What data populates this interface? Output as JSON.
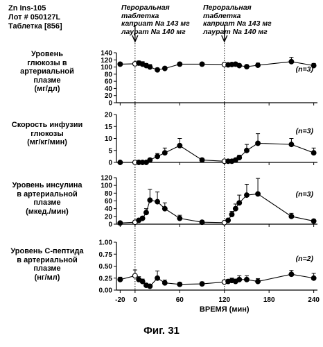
{
  "header": {
    "line1": "Zn Ins-105",
    "line2": "Лот # 050127L",
    "line3": "Таблетка [856]"
  },
  "dose_annotations": [
    {
      "lines": [
        "Пероральная",
        "таблетка",
        "каприат Na 143 мг",
        "лаурат Na 140 мг"
      ]
    },
    {
      "lines": [
        "Пероральная",
        "таблетка",
        "каприат Na 143 мг",
        "лаурат Na 140 мг"
      ]
    }
  ],
  "x_axis": {
    "label": "ВРЕМЯ (мин)",
    "ticks": [
      -20,
      0,
      60,
      120,
      180,
      240
    ],
    "tick_labels": [
      "-20",
      "0",
      "60",
      "120",
      "180",
      "240"
    ],
    "range": [
      -25,
      245
    ]
  },
  "dose_times": [
    0,
    120
  ],
  "figure_caption": "Фиг. 31",
  "chart_data": [
    {
      "type": "line",
      "caption_lines": [
        "Уровень",
        "глюкозы в",
        "артериальной",
        "плазме",
        "(мг/дл)"
      ],
      "n_label": "(n=3)",
      "ylim": [
        0,
        140
      ],
      "yticks": [
        0,
        20,
        40,
        60,
        80,
        100,
        120,
        140
      ],
      "ytick_labels": [
        "0",
        "20",
        "40",
        "60",
        "80",
        "100",
        "120",
        "140"
      ],
      "series": [
        {
          "x": [
            -20,
            0,
            5,
            10,
            15,
            20,
            30,
            40,
            60,
            90,
            120,
            125,
            130,
            135,
            140,
            150,
            165,
            210,
            240
          ],
          "y": [
            108,
            109,
            111,
            108,
            104,
            100,
            92,
            96,
            108,
            108,
            107,
            106,
            107,
            108,
            104,
            101,
            105,
            115,
            104
          ],
          "err": [
            5,
            4,
            6,
            7,
            6,
            7,
            5,
            5,
            5,
            4,
            4,
            4,
            4,
            5,
            5,
            5,
            6,
            12,
            6
          ]
        }
      ]
    },
    {
      "type": "line",
      "caption_lines": [
        "Скорость инфузии",
        "глюкозы",
        "(мг/кг/мин)"
      ],
      "n_label": "(n=3)",
      "ylim": [
        0,
        20
      ],
      "yticks": [
        0,
        5,
        10,
        15,
        20
      ],
      "ytick_labels": [
        "0",
        "5",
        "10",
        "15",
        "20"
      ],
      "series": [
        {
          "x": [
            -20,
            0,
            5,
            10,
            15,
            20,
            30,
            40,
            60,
            90,
            120,
            125,
            130,
            135,
            140,
            150,
            165,
            210,
            240
          ],
          "y": [
            0,
            0,
            0,
            0,
            0,
            1,
            2.5,
            4,
            7,
            1,
            0.5,
            0.5,
            0.5,
            1,
            2,
            5,
            8,
            7.5,
            4
          ],
          "err": [
            0,
            0,
            0,
            0,
            0,
            0.5,
            1.2,
            2,
            3,
            0.7,
            0.3,
            0.3,
            0.3,
            0.5,
            1,
            2.5,
            4,
            2.5,
            2
          ]
        }
      ]
    },
    {
      "type": "line",
      "caption_lines": [
        "Уровень инсулина",
        "в артериальной",
        "плазме",
        "(мкед./мин)"
      ],
      "n_label": "(n=3)",
      "ylim": [
        0,
        120
      ],
      "yticks": [
        0,
        20,
        40,
        60,
        80,
        100,
        120
      ],
      "ytick_labels": [
        "0",
        "20",
        "40",
        "60",
        "80",
        "100",
        "120"
      ],
      "series": [
        {
          "x": [
            -20,
            0,
            5,
            10,
            15,
            20,
            30,
            40,
            60,
            90,
            120,
            125,
            130,
            135,
            140,
            150,
            165,
            210,
            240
          ],
          "y": [
            3,
            5,
            10,
            15,
            30,
            62,
            58,
            40,
            15,
            5,
            4,
            10,
            25,
            40,
            55,
            75,
            78,
            20,
            8
          ],
          "err": [
            2,
            2,
            4,
            5,
            10,
            28,
            25,
            15,
            8,
            3,
            2,
            4,
            8,
            12,
            20,
            28,
            40,
            8,
            4
          ]
        }
      ]
    },
    {
      "type": "line",
      "caption_lines": [
        "Уровень С-пептида",
        "в артериальной",
        "плазме",
        "(нг/мл)"
      ],
      "n_label": "(n=2)",
      "ylim": [
        0,
        1.0
      ],
      "yticks": [
        0,
        0.25,
        0.5,
        0.75,
        1.0
      ],
      "ytick_labels": [
        "0.00",
        "0.25",
        "0.50",
        "0.75",
        "1.00"
      ],
      "series": [
        {
          "x": [
            -20,
            0,
            5,
            10,
            15,
            20,
            30,
            40,
            60,
            90,
            120,
            125,
            130,
            135,
            140,
            150,
            165,
            210,
            240
          ],
          "y": [
            0.22,
            0.3,
            0.22,
            0.18,
            0.1,
            0.08,
            0.25,
            0.15,
            0.12,
            0.13,
            0.17,
            0.18,
            0.2,
            0.18,
            0.22,
            0.22,
            0.18,
            0.33,
            0.25
          ],
          "err": [
            0.05,
            0.12,
            0.06,
            0.05,
            0.04,
            0.04,
            0.15,
            0.06,
            0.04,
            0.04,
            0.04,
            0.04,
            0.05,
            0.05,
            0.08,
            0.08,
            0.06,
            0.08,
            0.1
          ]
        }
      ]
    }
  ]
}
